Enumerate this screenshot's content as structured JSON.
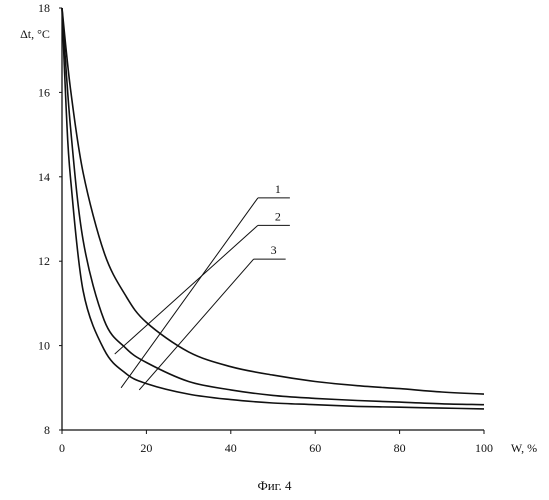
{
  "chart_data": {
    "type": "line",
    "ylabel": "Δt, °C",
    "xlabel": "W, %",
    "xlim": [
      0,
      100
    ],
    "ylim": [
      8,
      18
    ],
    "x_ticks": [
      0,
      20,
      40,
      60,
      80,
      100
    ],
    "y_ticks": [
      8,
      10,
      12,
      14,
      16,
      18
    ],
    "grid": false,
    "series": [
      {
        "name": "1",
        "x": [
          0,
          2,
          5,
          10,
          15,
          20,
          30,
          40,
          50,
          60,
          70,
          80,
          90,
          100
        ],
        "values": [
          18,
          16.1,
          14.1,
          12.2,
          11.2,
          10.55,
          9.85,
          9.5,
          9.3,
          9.15,
          9.05,
          8.98,
          8.9,
          8.85
        ]
      },
      {
        "name": "2",
        "x": [
          0,
          2,
          5,
          10,
          15,
          20,
          30,
          40,
          50,
          60,
          70,
          80,
          90,
          100
        ],
        "values": [
          18,
          15.2,
          12.5,
          10.6,
          9.95,
          9.6,
          9.15,
          8.95,
          8.82,
          8.75,
          8.7,
          8.66,
          8.62,
          8.6
        ]
      },
      {
        "name": "3",
        "x": [
          0,
          1,
          2,
          5,
          10,
          15,
          20,
          30,
          40,
          50,
          60,
          70,
          80,
          90,
          100
        ],
        "values": [
          18,
          15.6,
          14.0,
          11.3,
          9.9,
          9.35,
          9.1,
          8.85,
          8.72,
          8.64,
          8.6,
          8.56,
          8.54,
          8.52,
          8.5
        ]
      }
    ],
    "leaders": [
      {
        "label": "1",
        "tip": [
          14,
          9.0
        ],
        "end": [
          54,
          13.5
        ]
      },
      {
        "label": "2",
        "tip": [
          12.5,
          9.8
        ],
        "end": [
          54,
          12.85
        ]
      },
      {
        "label": "3",
        "tip": [
          18.3,
          8.95
        ],
        "end": [
          53,
          12.05
        ]
      }
    ]
  },
  "caption": "Фиг. 4"
}
